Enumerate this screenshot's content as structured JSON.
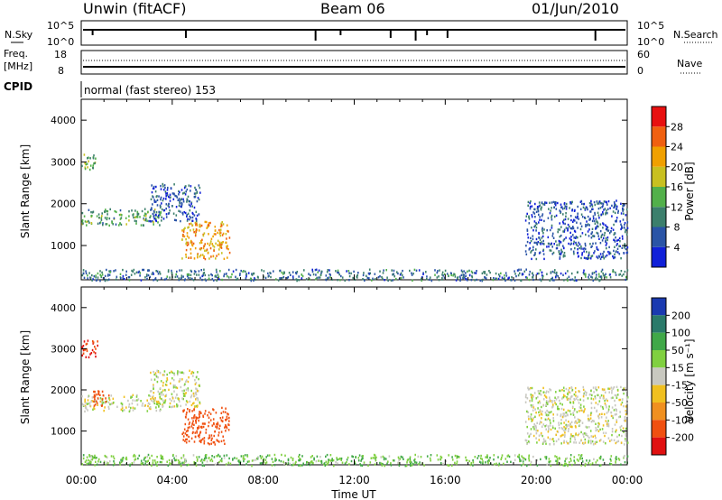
{
  "header": {
    "station": "Unwin (fitACF)",
    "beam": "Beam 06",
    "date": "01/Jun/2010"
  },
  "strips": {
    "nsky_label": "N.Sky",
    "nsky_ticks": [
      "10^5",
      "10^0"
    ],
    "nsearch_label": "N.Search",
    "nsearch_ticks": [
      "10^5",
      "10^0"
    ],
    "freq_label_line1": "Freq.",
    "freq_label_line2": "[MHz]",
    "freq_ticks": [
      "18",
      "8"
    ],
    "nave_label": "Nave",
    "nave_ticks": [
      "60",
      "0"
    ],
    "cpid_label": "CPID",
    "cpid_value": "normal (fast stereo) 153"
  },
  "axes": {
    "time_ticks": [
      "00:00",
      "04:00",
      "08:00",
      "12:00",
      "16:00",
      "20:00",
      "00:00"
    ],
    "xlabel": "Time UT",
    "range_ticks": [
      "1000",
      "2000",
      "3000",
      "4000"
    ],
    "ylabel": "Slant Range [km]"
  },
  "power_scale": {
    "label": "Power [dB]",
    "ticks": [
      "4",
      "8",
      "12",
      "16",
      "20",
      "24",
      "28"
    ],
    "colors": [
      "#1020d8",
      "#2a54a6",
      "#3c7f6c",
      "#52b04a",
      "#c8c020",
      "#f0a000",
      "#f06010",
      "#e81010"
    ]
  },
  "velocity_scale": {
    "label": "Velocity [m s⁻¹]",
    "ticks": [
      "200",
      "100",
      "50",
      "15",
      "-15",
      "-50",
      "-100",
      "-200"
    ],
    "colors": [
      "#1a3ab0",
      "#2a7a6a",
      "#40a848",
      "#80d040",
      "#c8c8c0",
      "#f0c020",
      "#f09020",
      "#f05010",
      "#e01010"
    ]
  },
  "chart_data": [
    {
      "type": "heatmap",
      "title": "Power",
      "xlabel": "Time UT",
      "ylabel": "Slant Range [km]",
      "xlim": [
        "00:00",
        "24:00"
      ],
      "ylim": [
        180,
        4500
      ],
      "colorbar_label": "Power [dB]",
      "colorbar_range": [
        0,
        30
      ],
      "regions": [
        {
          "t_start": 0.0,
          "t_end": 0.6,
          "range_start": 2800,
          "range_end": 3250,
          "value": 14
        },
        {
          "t_start": 0.0,
          "t_end": 3.5,
          "range_start": 1500,
          "range_end": 1900,
          "value": 12
        },
        {
          "t_start": 3.0,
          "t_end": 5.2,
          "range_start": 1600,
          "range_end": 2500,
          "value": 6
        },
        {
          "t_start": 4.4,
          "t_end": 6.5,
          "range_start": 700,
          "range_end": 1600,
          "value": 22
        },
        {
          "t_start": 19.5,
          "t_end": 24.0,
          "range_start": 700,
          "range_end": 2100,
          "value": 6
        },
        {
          "t_start": 0.0,
          "t_end": 24.0,
          "range_start": 180,
          "range_end": 450,
          "value": 8
        }
      ]
    },
    {
      "type": "heatmap",
      "title": "Velocity",
      "xlabel": "Time UT",
      "ylabel": "Slant Range [km]",
      "xlim": [
        "00:00",
        "24:00"
      ],
      "ylim": [
        180,
        4500
      ],
      "colorbar_label": "Velocity [m s⁻¹]",
      "colorbar_range": [
        -200,
        200
      ],
      "regions": [
        {
          "t_start": 0.0,
          "t_end": 0.7,
          "range_start": 2800,
          "range_end": 3250,
          "value": -200
        },
        {
          "t_start": 0.0,
          "t_end": 3.5,
          "range_start": 1500,
          "range_end": 1900,
          "value": 0
        },
        {
          "t_start": 0.5,
          "t_end": 1.2,
          "range_start": 1600,
          "range_end": 2000,
          "value": -150
        },
        {
          "t_start": 3.0,
          "t_end": 5.2,
          "range_start": 1600,
          "range_end": 2500,
          "value": 0
        },
        {
          "t_start": 4.4,
          "t_end": 6.5,
          "range_start": 700,
          "range_end": 1600,
          "value": -150
        },
        {
          "t_start": 19.5,
          "t_end": 24.0,
          "range_start": 700,
          "range_end": 2100,
          "value": 0
        },
        {
          "t_start": 0.0,
          "t_end": 24.0,
          "range_start": 180,
          "range_end": 450,
          "value": 40
        }
      ]
    }
  ]
}
